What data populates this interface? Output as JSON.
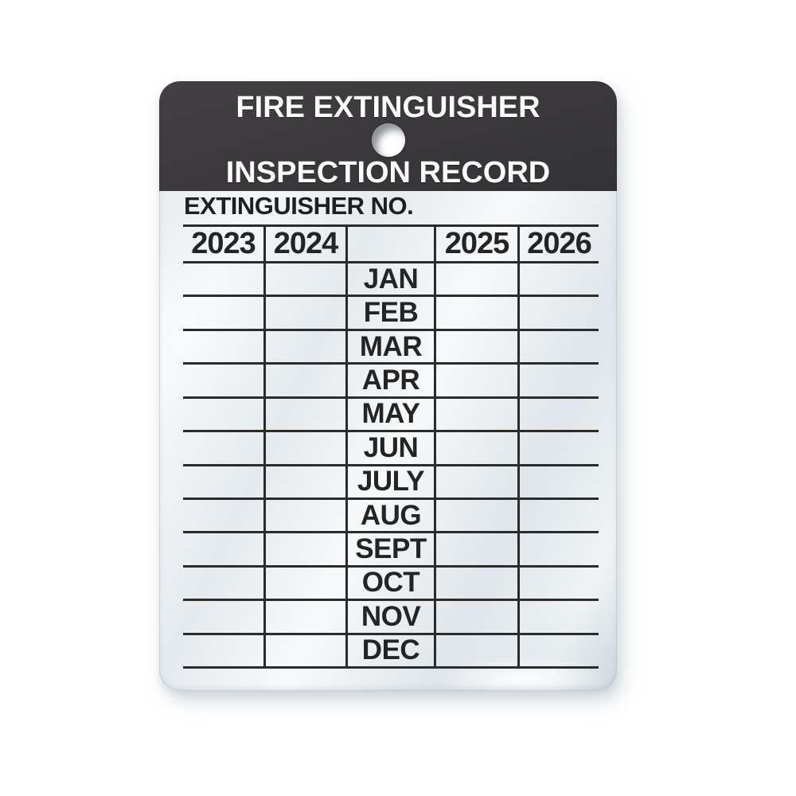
{
  "page": {
    "background": "#ffffff"
  },
  "tag": {
    "header": {
      "line1": "FIRE EXTINGUISHER",
      "line2": "INSPECTION RECORD",
      "bg_color": "#3b393b",
      "text_color": "#fcfcfc"
    },
    "extinguisher_no_label": "EXTINGUISHER NO.",
    "table": {
      "years": [
        "2023",
        "2024",
        "2025",
        "2026"
      ],
      "months": [
        "JAN",
        "FEB",
        "MAR",
        "APR",
        "MAY",
        "JUN",
        "JULY",
        "AUG",
        "SEPT",
        "OCT",
        "NOV",
        "DEC"
      ],
      "line_color": "#2b2b2b",
      "text_color": "#242424"
    }
  }
}
